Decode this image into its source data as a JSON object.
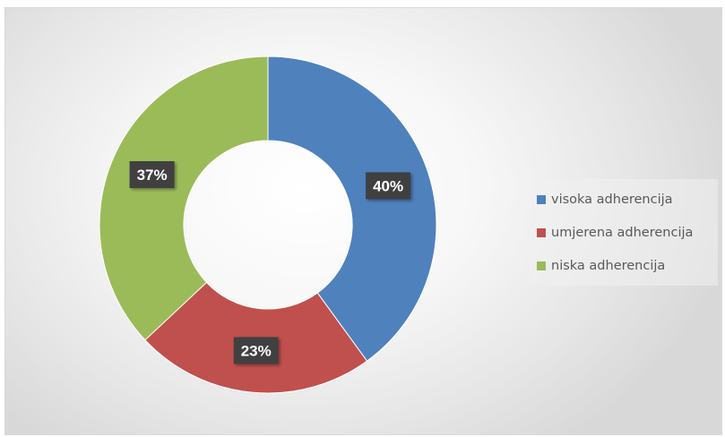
{
  "chart_data": {
    "type": "pie",
    "variant": "doughnut",
    "title": "",
    "categories": [
      "visoka adherencija",
      "umjerena adherencija",
      "niska adherencija"
    ],
    "values": [
      40,
      23,
      37
    ],
    "value_labels": [
      "40%",
      "23%",
      "37%"
    ],
    "colors": [
      "#4f81bd",
      "#c0504d",
      "#9bbb59"
    ],
    "legend_position": "right",
    "label_style": "dark boxes with white bold text"
  }
}
